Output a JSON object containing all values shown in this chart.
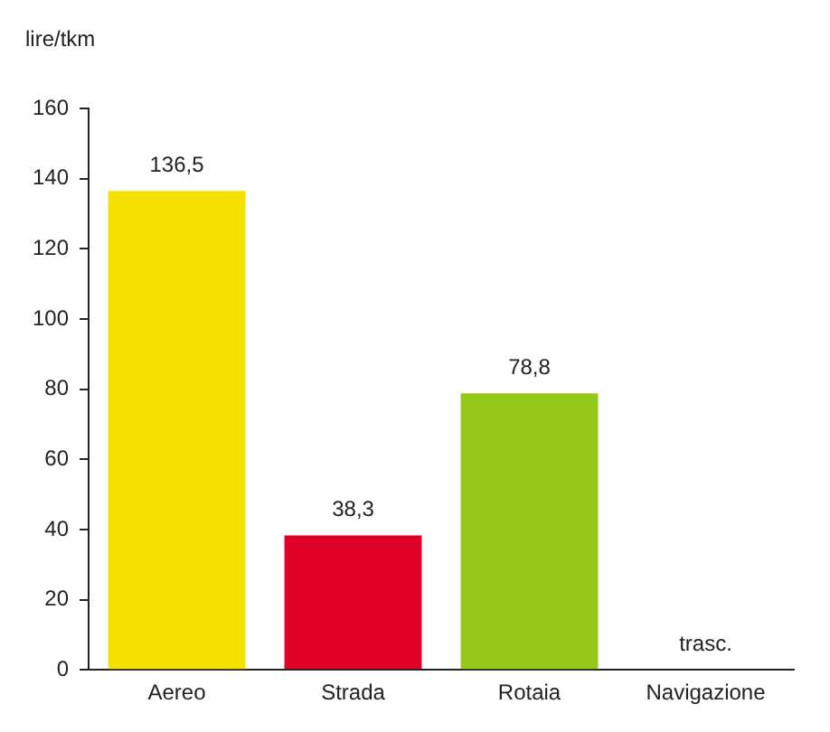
{
  "chart_data": {
    "type": "bar",
    "ylabel": "lire/tkm",
    "categories": [
      "Aereo",
      "Strada",
      "Rotaia",
      "Navigazione"
    ],
    "values": [
      136.5,
      38.3,
      78.8,
      null
    ],
    "colors": [
      "#f5e100",
      "#e00028",
      "#94c91a",
      "#cccccc"
    ],
    "value_labels": [
      "136,5",
      "38,3",
      "78,8",
      "trasc."
    ],
    "ylim": [
      0,
      160
    ],
    "yticks": [
      0,
      20,
      40,
      60,
      80,
      100,
      120,
      140,
      160
    ]
  }
}
